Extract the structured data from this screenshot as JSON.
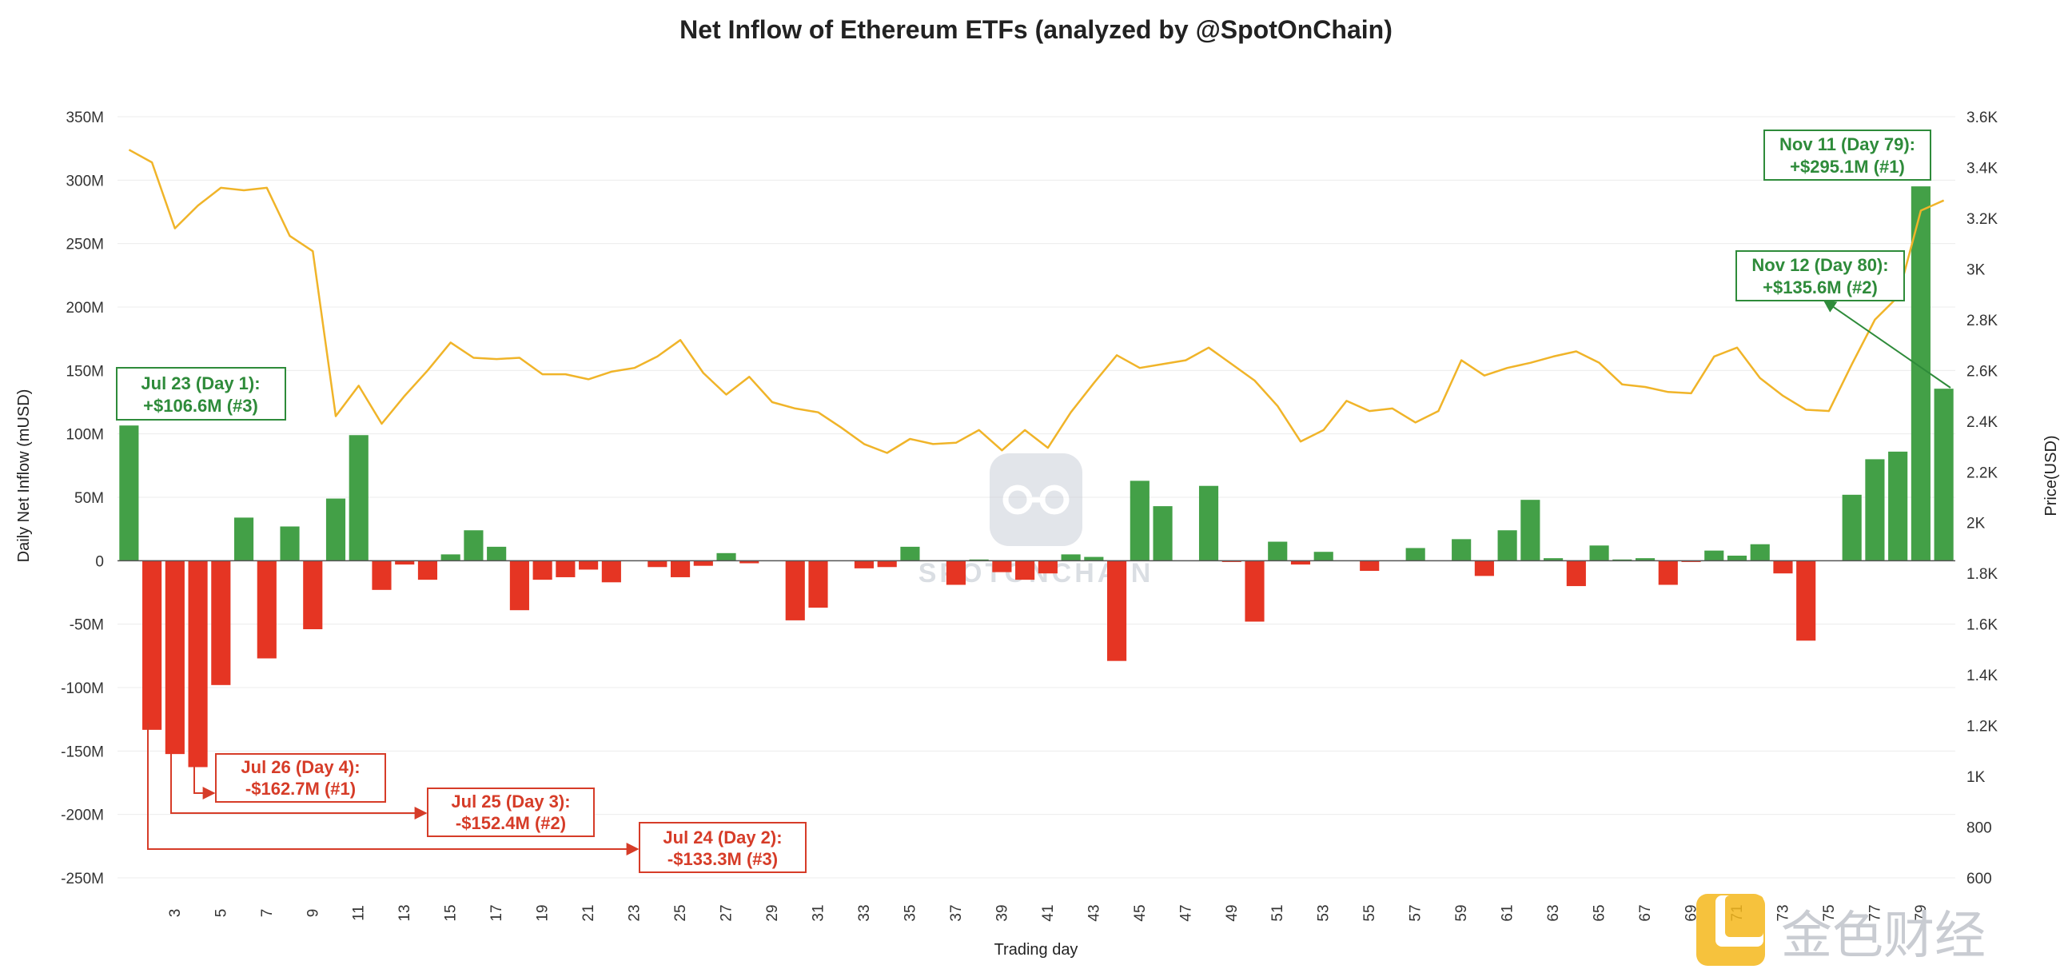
{
  "colors": {
    "positive": "#43a047",
    "negative": "#e53523",
    "price_line": "#f0b429",
    "grid": "#ececec",
    "ann_green": "#2e8b3a",
    "ann_red": "#d63c28"
  },
  "watermark": {
    "text": "SPOTONCHAIN",
    "icon": "spotonchain-logo-icon",
    "brand_icon": "jinse-logo-icon",
    "brand_text": "金色财经"
  },
  "chart_data": {
    "type": "bar+line",
    "title": "Net Inflow of Ethereum ETFs (analyzed by @SpotOnChain)",
    "xlabel": "Trading day",
    "ylabel": "Daily Net Inflow (mUSD)",
    "y2label": "Price(USD)",
    "ylim": [
      -250,
      350
    ],
    "y2lim": [
      600,
      3600
    ],
    "y_ticks": [
      "-250M",
      "-200M",
      "-150M",
      "-100M",
      "-50M",
      "0",
      "50M",
      "100M",
      "150M",
      "200M",
      "250M",
      "300M",
      "350M"
    ],
    "y2_ticks": [
      "600",
      "800",
      "1K",
      "1.2K",
      "1.4K",
      "1.6K",
      "1.8K",
      "2K",
      "2.2K",
      "2.4K",
      "2.6K",
      "2.8K",
      "3K",
      "3.2K",
      "3.4K",
      "3.6K"
    ],
    "x_ticks": [
      "3",
      "5",
      "7",
      "9",
      "11",
      "13",
      "15",
      "17",
      "19",
      "21",
      "23",
      "25",
      "27",
      "29",
      "31",
      "33",
      "35",
      "37",
      "39",
      "41",
      "43",
      "45",
      "47",
      "49",
      "51",
      "53",
      "55",
      "57",
      "59",
      "61",
      "63",
      "65",
      "67",
      "69",
      "71",
      "73",
      "75",
      "77",
      "79"
    ],
    "days": [
      1,
      2,
      3,
      4,
      5,
      6,
      7,
      8,
      9,
      10,
      11,
      12,
      13,
      14,
      15,
      16,
      17,
      18,
      19,
      20,
      21,
      22,
      23,
      24,
      25,
      26,
      27,
      28,
      29,
      30,
      31,
      32,
      33,
      34,
      35,
      36,
      37,
      38,
      39,
      40,
      41,
      42,
      43,
      44,
      45,
      46,
      47,
      48,
      49,
      50,
      51,
      52,
      53,
      54,
      55,
      56,
      57,
      58,
      59,
      60,
      61,
      62,
      63,
      64,
      65,
      66,
      67,
      68,
      69,
      70,
      71,
      72,
      73,
      74,
      75,
      76,
      77,
      78,
      79,
      80
    ],
    "series": [
      {
        "name": "Daily Net Inflow (mUSD)",
        "type": "bar",
        "values": [
          106.6,
          -133.3,
          -152.4,
          -162.7,
          -98,
          34,
          -77,
          27,
          -54,
          49,
          99,
          -23,
          -3,
          -15,
          5,
          24,
          11,
          -39,
          -15,
          -13,
          -7,
          -17,
          0,
          -5,
          -13,
          -4,
          6,
          -2,
          0,
          -47,
          -37,
          0,
          -6,
          -5,
          11,
          0,
          -19,
          1,
          -9,
          -15,
          -10,
          5,
          3,
          -79,
          63,
          43,
          0,
          59,
          -1,
          -48,
          15,
          -3,
          7,
          0,
          -8,
          0,
          10,
          0,
          17,
          -12,
          24,
          48,
          2,
          -20,
          12,
          1,
          2,
          -19,
          -1,
          8,
          4,
          13,
          -10,
          -63,
          0,
          52,
          80,
          86,
          295.1,
          135.6
        ]
      },
      {
        "name": "Price (USD)",
        "type": "line",
        "values": [
          3470,
          3420,
          3160,
          3250,
          3320,
          3310,
          3320,
          3130,
          3070,
          2420,
          2540,
          2390,
          2500,
          2600,
          2710,
          2650,
          2645,
          2650,
          2585,
          2585,
          2565,
          2595,
          2610,
          2655,
          2720,
          2590,
          2505,
          2575,
          2475,
          2450,
          2435,
          2375,
          2310,
          2275,
          2330,
          2310,
          2315,
          2365,
          2285,
          2365,
          2295,
          2435,
          2550,
          2660,
          2610,
          2625,
          2640,
          2690,
          2625,
          2560,
          2460,
          2320,
          2365,
          2480,
          2440,
          2450,
          2395,
          2440,
          2640,
          2580,
          2610,
          2630,
          2655,
          2675,
          2630,
          2545,
          2535,
          2515,
          2510,
          2655,
          2690,
          2570,
          2500,
          2445,
          2440,
          2625,
          2800,
          2890,
          3230,
          3270
        ]
      }
    ],
    "annotations": [
      {
        "line1": "Jul 23 (Day 1):",
        "line2": "+$106.6M (#3)",
        "color": "green"
      },
      {
        "line1": "Jul 24 (Day 2):",
        "line2": "-$133.3M (#3)",
        "color": "red"
      },
      {
        "line1": "Jul 25 (Day 3):",
        "line2": "-$152.4M (#2)",
        "color": "red"
      },
      {
        "line1": "Jul 26 (Day 4):",
        "line2": "-$162.7M (#1)",
        "color": "red"
      },
      {
        "line1": "Nov 11 (Day 79):",
        "line2": "+$295.1M (#1)",
        "color": "green"
      },
      {
        "line1": "Nov 12 (Day 80):",
        "line2": "+$135.6M (#2)",
        "color": "green"
      }
    ]
  }
}
